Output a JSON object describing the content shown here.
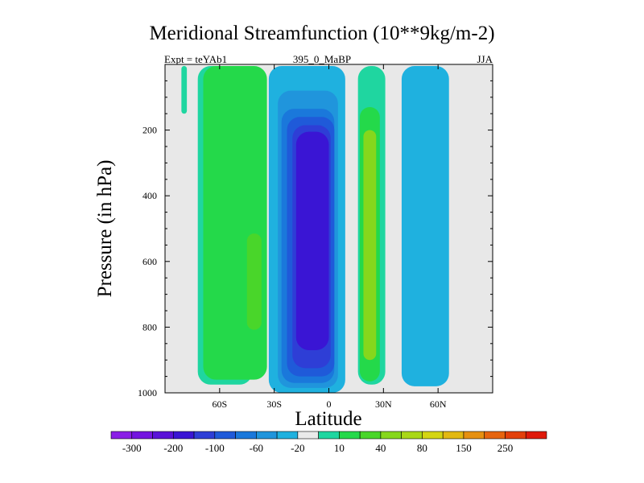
{
  "chart_data": {
    "type": "filled-contour",
    "title": "Meridional Streamfunction (10**9kg/m-2)",
    "subtitle_left": "Expt = teYAb1",
    "subtitle_center": "395_0_MaBP",
    "subtitle_right": "JJA",
    "xlabel": "Latitude",
    "ylabel": "Pressure (in hPa)",
    "xlim": [
      -90,
      90
    ],
    "ylim": [
      1000,
      0
    ],
    "x_ticks": [
      {
        "value": -60,
        "label": "60S"
      },
      {
        "value": -30,
        "label": "30S"
      },
      {
        "value": 0,
        "label": "0"
      },
      {
        "value": 30,
        "label": "30N"
      },
      {
        "value": 60,
        "label": "60N"
      }
    ],
    "y_ticks": [
      {
        "value": 200,
        "label": "200"
      },
      {
        "value": 400,
        "label": "400"
      },
      {
        "value": 600,
        "label": "600"
      },
      {
        "value": 800,
        "label": "800"
      },
      {
        "value": 1000,
        "label": "1000"
      }
    ],
    "colorbar": {
      "colors": [
        "#8a1fe6",
        "#7415e0",
        "#5a12d8",
        "#3a15d4",
        "#2e3ed6",
        "#1f5ad9",
        "#1a78db",
        "#2095dc",
        "#1fb1df",
        "#eaeaea",
        "#1fd6a0",
        "#24d94a",
        "#49d62a",
        "#86d71c",
        "#a9d817",
        "#d4d513",
        "#e2b812",
        "#e69010",
        "#e6640e",
        "#e3400b",
        "#df1a0b"
      ],
      "label_values": [
        "-300",
        "-200",
        "-100",
        "-60",
        "-20",
        "10",
        "40",
        "80",
        "150",
        "250"
      ]
    },
    "regions": [
      {
        "name": "sh-subpolar-outer",
        "level": 20,
        "color": "#1fd6a0",
        "lat_range": [
          -72,
          -42
        ],
        "p_range": [
          5,
          975
        ]
      },
      {
        "name": "sh-subpolar-mid",
        "level": 30,
        "color": "#24d94a",
        "lat_range": [
          -69,
          -34
        ],
        "p_range": [
          5,
          960
        ]
      },
      {
        "name": "sh-subpolar-core",
        "level": 50,
        "color": "#49d62a",
        "lat_range": [
          -45,
          -37
        ],
        "p_range": [
          515,
          808
        ]
      },
      {
        "name": "sh-highlat-strip",
        "level": 20,
        "color": "#1fd6a0",
        "lat_range": [
          -81,
          -78
        ],
        "p_range": [
          5,
          150
        ]
      },
      {
        "name": "hadley-outer",
        "level": -20,
        "color": "#1fb1df",
        "lat_range": [
          -33,
          9
        ],
        "p_range": [
          5,
          1000
        ]
      },
      {
        "name": "hadley-ring2",
        "level": -40,
        "color": "#2095dc",
        "lat_range": [
          -28,
          5
        ],
        "p_range": [
          80,
          985
        ]
      },
      {
        "name": "hadley-ring3",
        "level": -60,
        "color": "#1a78db",
        "lat_range": [
          -26,
          3
        ],
        "p_range": [
          135,
          970
        ]
      },
      {
        "name": "hadley-ring4",
        "level": -80,
        "color": "#1f5ad9",
        "lat_range": [
          -23,
          3
        ],
        "p_range": [
          160,
          950
        ]
      },
      {
        "name": "hadley-ring5",
        "level": -100,
        "color": "#2e3ed6",
        "lat_range": [
          -20,
          1
        ],
        "p_range": [
          185,
          925
        ]
      },
      {
        "name": "hadley-core",
        "level": -150,
        "color": "#3a15d4",
        "lat_range": [
          -18,
          0
        ],
        "p_range": [
          205,
          870
        ]
      },
      {
        "name": "nh-cell-outer",
        "level": 20,
        "color": "#1fd6a0",
        "lat_range": [
          16,
          31
        ],
        "p_range": [
          5,
          975
        ]
      },
      {
        "name": "nh-cell-mid",
        "level": 30,
        "color": "#24d94a",
        "lat_range": [
          17,
          28
        ],
        "p_range": [
          130,
          965
        ]
      },
      {
        "name": "nh-cell-core",
        "level": 60,
        "color": "#86d71c",
        "lat_range": [
          19,
          26
        ],
        "p_range": [
          200,
          900
        ]
      },
      {
        "name": "nh-midlat",
        "level": -20,
        "color": "#1fb1df",
        "lat_range": [
          40,
          66
        ],
        "p_range": [
          5,
          980
        ]
      }
    ]
  }
}
